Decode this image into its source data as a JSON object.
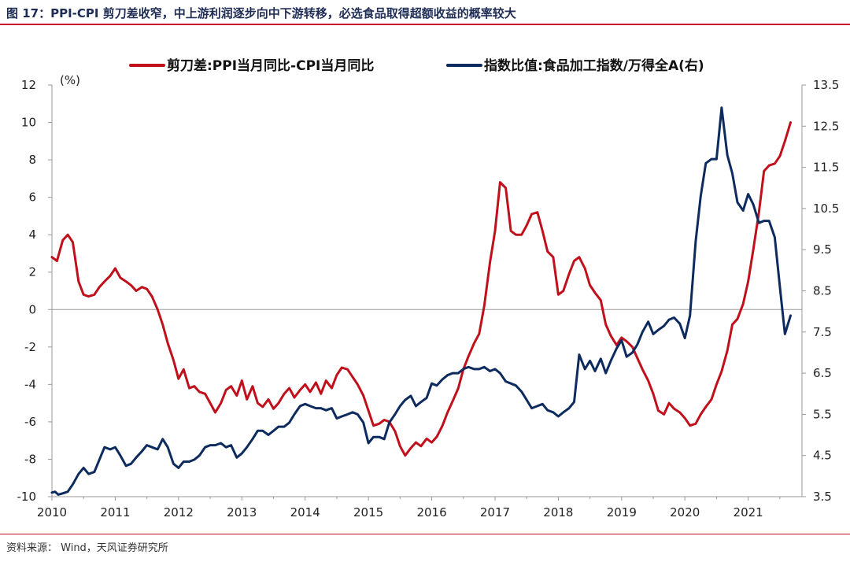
{
  "header": {
    "title": "图 17：PPI-CPI 剪刀差收窄，中上游利润逐步向中下游转移，必选食品取得超额收益的概率较大"
  },
  "footer": {
    "source": "资料来源： Wind，天风证券研究所"
  },
  "colors": {
    "accent": "#c8102e",
    "series_red": "#c0101c",
    "series_navy": "#0d2b5e"
  },
  "chart_data": {
    "type": "line",
    "left_axis_unit": "(%)",
    "xlim": [
      2010.0,
      2021.85
    ],
    "ylim_left": [
      -10,
      12
    ],
    "ylim_right": [
      3.5,
      13.5
    ],
    "x_ticks": [
      "2010",
      "2011",
      "2012",
      "2013",
      "2014",
      "2015",
      "2016",
      "2017",
      "2018",
      "2019",
      "2020",
      "2021"
    ],
    "y_left_ticks": [
      "-10",
      "-8",
      "-6",
      "-4",
      "-2",
      "0",
      "2",
      "4",
      "6",
      "8",
      "10",
      "12"
    ],
    "y_right_ticks": [
      "3.5",
      "4.5",
      "5.5",
      "6.5",
      "7.5",
      "8.5",
      "9.5",
      "10.5",
      "11.5",
      "12.5",
      "13.5"
    ],
    "series": [
      {
        "name": "剪刀差:PPI当月同比-CPI当月同比",
        "axis": "left",
        "color": "#c0101c",
        "points": [
          [
            2010.0,
            2.8
          ],
          [
            2010.08,
            2.6
          ],
          [
            2010.17,
            3.7
          ],
          [
            2010.25,
            4.0
          ],
          [
            2010.33,
            3.6
          ],
          [
            2010.42,
            1.5
          ],
          [
            2010.5,
            0.8
          ],
          [
            2010.58,
            0.7
          ],
          [
            2010.67,
            0.8
          ],
          [
            2010.75,
            1.2
          ],
          [
            2010.83,
            1.5
          ],
          [
            2010.92,
            1.8
          ],
          [
            2011.0,
            2.2
          ],
          [
            2011.08,
            1.7
          ],
          [
            2011.17,
            1.5
          ],
          [
            2011.25,
            1.3
          ],
          [
            2011.33,
            1.0
          ],
          [
            2011.42,
            1.2
          ],
          [
            2011.5,
            1.1
          ],
          [
            2011.58,
            0.7
          ],
          [
            2011.67,
            0.0
          ],
          [
            2011.75,
            -0.8
          ],
          [
            2011.83,
            -1.8
          ],
          [
            2011.92,
            -2.7
          ],
          [
            2012.0,
            -3.7
          ],
          [
            2012.08,
            -3.2
          ],
          [
            2012.17,
            -4.2
          ],
          [
            2012.25,
            -4.1
          ],
          [
            2012.33,
            -4.4
          ],
          [
            2012.42,
            -4.5
          ],
          [
            2012.5,
            -5.0
          ],
          [
            2012.58,
            -5.5
          ],
          [
            2012.67,
            -5.0
          ],
          [
            2012.75,
            -4.3
          ],
          [
            2012.83,
            -4.1
          ],
          [
            2012.92,
            -4.6
          ],
          [
            2013.0,
            -3.8
          ],
          [
            2013.08,
            -4.8
          ],
          [
            2013.17,
            -4.1
          ],
          [
            2013.25,
            -5.0
          ],
          [
            2013.33,
            -5.2
          ],
          [
            2013.42,
            -4.8
          ],
          [
            2013.5,
            -5.3
          ],
          [
            2013.58,
            -5.0
          ],
          [
            2013.67,
            -4.5
          ],
          [
            2013.75,
            -4.2
          ],
          [
            2013.83,
            -4.7
          ],
          [
            2013.92,
            -4.3
          ],
          [
            2014.0,
            -4.0
          ],
          [
            2014.08,
            -4.4
          ],
          [
            2014.17,
            -3.9
          ],
          [
            2014.25,
            -4.5
          ],
          [
            2014.33,
            -3.8
          ],
          [
            2014.42,
            -4.2
          ],
          [
            2014.5,
            -3.5
          ],
          [
            2014.58,
            -3.1
          ],
          [
            2014.67,
            -3.2
          ],
          [
            2014.75,
            -3.6
          ],
          [
            2014.83,
            -4.0
          ],
          [
            2014.92,
            -4.6
          ],
          [
            2015.0,
            -5.4
          ],
          [
            2015.08,
            -6.2
          ],
          [
            2015.17,
            -6.1
          ],
          [
            2015.25,
            -5.9
          ],
          [
            2015.33,
            -6.0
          ],
          [
            2015.42,
            -6.5
          ],
          [
            2015.5,
            -7.3
          ],
          [
            2015.58,
            -7.8
          ],
          [
            2015.67,
            -7.4
          ],
          [
            2015.75,
            -7.1
          ],
          [
            2015.83,
            -7.3
          ],
          [
            2015.92,
            -6.9
          ],
          [
            2016.0,
            -7.1
          ],
          [
            2016.08,
            -6.8
          ],
          [
            2016.17,
            -6.2
          ],
          [
            2016.25,
            -5.5
          ],
          [
            2016.33,
            -4.9
          ],
          [
            2016.42,
            -4.2
          ],
          [
            2016.5,
            -3.2
          ],
          [
            2016.58,
            -2.5
          ],
          [
            2016.67,
            -1.8
          ],
          [
            2016.75,
            -1.3
          ],
          [
            2016.83,
            0.2
          ],
          [
            2016.92,
            2.5
          ],
          [
            2017.0,
            4.2
          ],
          [
            2017.08,
            6.8
          ],
          [
            2017.17,
            6.5
          ],
          [
            2017.25,
            4.2
          ],
          [
            2017.33,
            4.0
          ],
          [
            2017.42,
            4.0
          ],
          [
            2017.5,
            4.5
          ],
          [
            2017.58,
            5.1
          ],
          [
            2017.67,
            5.2
          ],
          [
            2017.75,
            4.2
          ],
          [
            2017.83,
            3.1
          ],
          [
            2017.92,
            2.8
          ],
          [
            2018.0,
            0.8
          ],
          [
            2018.08,
            1.0
          ],
          [
            2018.17,
            1.9
          ],
          [
            2018.25,
            2.6
          ],
          [
            2018.33,
            2.8
          ],
          [
            2018.42,
            2.2
          ],
          [
            2018.5,
            1.3
          ],
          [
            2018.58,
            0.9
          ],
          [
            2018.67,
            0.5
          ],
          [
            2018.75,
            -0.8
          ],
          [
            2018.83,
            -1.4
          ],
          [
            2018.92,
            -1.9
          ],
          [
            2019.0,
            -1.5
          ],
          [
            2019.08,
            -1.7
          ],
          [
            2019.17,
            -2.0
          ],
          [
            2019.25,
            -2.6
          ],
          [
            2019.33,
            -3.2
          ],
          [
            2019.42,
            -3.8
          ],
          [
            2019.5,
            -4.5
          ],
          [
            2019.58,
            -5.4
          ],
          [
            2019.67,
            -5.6
          ],
          [
            2019.75,
            -5.0
          ],
          [
            2019.83,
            -5.3
          ],
          [
            2019.92,
            -5.5
          ],
          [
            2020.0,
            -5.8
          ],
          [
            2020.08,
            -6.2
          ],
          [
            2020.17,
            -6.1
          ],
          [
            2020.25,
            -5.6
          ],
          [
            2020.33,
            -5.2
          ],
          [
            2020.42,
            -4.8
          ],
          [
            2020.5,
            -4.0
          ],
          [
            2020.58,
            -3.3
          ],
          [
            2020.67,
            -2.2
          ],
          [
            2020.75,
            -0.8
          ],
          [
            2020.83,
            -0.5
          ],
          [
            2020.92,
            0.3
          ],
          [
            2021.0,
            1.5
          ],
          [
            2021.08,
            3.2
          ],
          [
            2021.17,
            5.2
          ],
          [
            2021.25,
            7.4
          ],
          [
            2021.33,
            7.7
          ],
          [
            2021.42,
            7.8
          ],
          [
            2021.5,
            8.2
          ],
          [
            2021.58,
            9.0
          ],
          [
            2021.67,
            10.0
          ]
        ]
      },
      {
        "name": "指数比值:食品加工指数/万得全A(右)",
        "axis": "right",
        "color": "#0d2b5e",
        "points": [
          [
            2010.0,
            3.6
          ],
          [
            2010.05,
            3.62
          ],
          [
            2010.1,
            3.55
          ],
          [
            2010.17,
            3.58
          ],
          [
            2010.25,
            3.62
          ],
          [
            2010.33,
            3.8
          ],
          [
            2010.42,
            4.05
          ],
          [
            2010.5,
            4.2
          ],
          [
            2010.58,
            4.05
          ],
          [
            2010.67,
            4.1
          ],
          [
            2010.75,
            4.4
          ],
          [
            2010.83,
            4.7
          ],
          [
            2010.92,
            4.65
          ],
          [
            2011.0,
            4.7
          ],
          [
            2011.08,
            4.5
          ],
          [
            2011.17,
            4.25
          ],
          [
            2011.25,
            4.3
          ],
          [
            2011.33,
            4.45
          ],
          [
            2011.42,
            4.6
          ],
          [
            2011.5,
            4.75
          ],
          [
            2011.58,
            4.7
          ],
          [
            2011.67,
            4.65
          ],
          [
            2011.75,
            4.9
          ],
          [
            2011.83,
            4.7
          ],
          [
            2011.92,
            4.3
          ],
          [
            2012.0,
            4.2
          ],
          [
            2012.08,
            4.35
          ],
          [
            2012.17,
            4.35
          ],
          [
            2012.25,
            4.4
          ],
          [
            2012.33,
            4.5
          ],
          [
            2012.42,
            4.7
          ],
          [
            2012.5,
            4.75
          ],
          [
            2012.58,
            4.75
          ],
          [
            2012.67,
            4.8
          ],
          [
            2012.75,
            4.7
          ],
          [
            2012.83,
            4.75
          ],
          [
            2012.92,
            4.45
          ],
          [
            2013.0,
            4.55
          ],
          [
            2013.08,
            4.7
          ],
          [
            2013.17,
            4.9
          ],
          [
            2013.25,
            5.1
          ],
          [
            2013.33,
            5.1
          ],
          [
            2013.42,
            5.0
          ],
          [
            2013.5,
            5.1
          ],
          [
            2013.58,
            5.2
          ],
          [
            2013.67,
            5.2
          ],
          [
            2013.75,
            5.3
          ],
          [
            2013.83,
            5.5
          ],
          [
            2013.92,
            5.7
          ],
          [
            2014.0,
            5.75
          ],
          [
            2014.08,
            5.7
          ],
          [
            2014.17,
            5.65
          ],
          [
            2014.25,
            5.65
          ],
          [
            2014.33,
            5.6
          ],
          [
            2014.42,
            5.65
          ],
          [
            2014.5,
            5.4
          ],
          [
            2014.58,
            5.45
          ],
          [
            2014.67,
            5.5
          ],
          [
            2014.75,
            5.55
          ],
          [
            2014.83,
            5.5
          ],
          [
            2014.92,
            5.3
          ],
          [
            2015.0,
            4.8
          ],
          [
            2015.08,
            4.95
          ],
          [
            2015.17,
            4.95
          ],
          [
            2015.25,
            4.9
          ],
          [
            2015.33,
            5.3
          ],
          [
            2015.42,
            5.5
          ],
          [
            2015.5,
            5.7
          ],
          [
            2015.58,
            5.85
          ],
          [
            2015.67,
            5.95
          ],
          [
            2015.75,
            5.7
          ],
          [
            2015.83,
            5.8
          ],
          [
            2015.92,
            5.9
          ],
          [
            2016.0,
            6.25
          ],
          [
            2016.08,
            6.2
          ],
          [
            2016.17,
            6.35
          ],
          [
            2016.25,
            6.45
          ],
          [
            2016.33,
            6.5
          ],
          [
            2016.42,
            6.5
          ],
          [
            2016.5,
            6.6
          ],
          [
            2016.58,
            6.65
          ],
          [
            2016.67,
            6.6
          ],
          [
            2016.75,
            6.6
          ],
          [
            2016.83,
            6.65
          ],
          [
            2016.92,
            6.55
          ],
          [
            2017.0,
            6.6
          ],
          [
            2017.08,
            6.5
          ],
          [
            2017.17,
            6.3
          ],
          [
            2017.25,
            6.25
          ],
          [
            2017.33,
            6.2
          ],
          [
            2017.42,
            6.05
          ],
          [
            2017.5,
            5.85
          ],
          [
            2017.58,
            5.65
          ],
          [
            2017.67,
            5.7
          ],
          [
            2017.75,
            5.75
          ],
          [
            2017.83,
            5.6
          ],
          [
            2017.92,
            5.55
          ],
          [
            2018.0,
            5.45
          ],
          [
            2018.08,
            5.55
          ],
          [
            2018.17,
            5.65
          ],
          [
            2018.25,
            5.8
          ],
          [
            2018.33,
            6.95
          ],
          [
            2018.42,
            6.6
          ],
          [
            2018.5,
            6.8
          ],
          [
            2018.58,
            6.55
          ],
          [
            2018.67,
            6.85
          ],
          [
            2018.75,
            6.5
          ],
          [
            2018.83,
            6.8
          ],
          [
            2018.92,
            7.1
          ],
          [
            2019.0,
            7.3
          ],
          [
            2019.08,
            6.9
          ],
          [
            2019.17,
            7.0
          ],
          [
            2019.25,
            7.2
          ],
          [
            2019.33,
            7.5
          ],
          [
            2019.42,
            7.75
          ],
          [
            2019.5,
            7.45
          ],
          [
            2019.58,
            7.55
          ],
          [
            2019.67,
            7.65
          ],
          [
            2019.75,
            7.8
          ],
          [
            2019.83,
            7.85
          ],
          [
            2019.92,
            7.7
          ],
          [
            2020.0,
            7.35
          ],
          [
            2020.08,
            7.9
          ],
          [
            2020.17,
            9.7
          ],
          [
            2020.25,
            10.8
          ],
          [
            2020.33,
            11.6
          ],
          [
            2020.42,
            11.7
          ],
          [
            2020.5,
            11.7
          ],
          [
            2020.58,
            12.95
          ],
          [
            2020.67,
            11.8
          ],
          [
            2020.75,
            11.35
          ],
          [
            2020.83,
            10.65
          ],
          [
            2020.92,
            10.45
          ],
          [
            2021.0,
            10.85
          ],
          [
            2021.08,
            10.6
          ],
          [
            2021.17,
            10.15
          ],
          [
            2021.25,
            10.2
          ],
          [
            2021.33,
            10.2
          ],
          [
            2021.42,
            9.8
          ],
          [
            2021.5,
            8.6
          ],
          [
            2021.58,
            7.45
          ],
          [
            2021.67,
            7.9
          ]
        ]
      }
    ]
  }
}
